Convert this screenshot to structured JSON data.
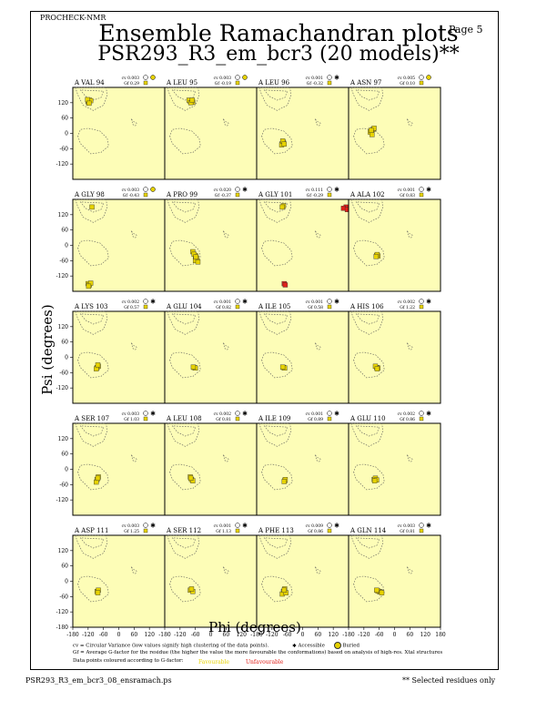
{
  "header": {
    "program": "PROCHECK-NMR",
    "page": "Page 5",
    "title": "Ensemble Ramachandran plots",
    "subtitle": "PSR293_R3_em_bcr3 (20 models)**"
  },
  "axes": {
    "xlabel": "Phi (degrees)",
    "ylabel": "Psi (degrees)",
    "x_ticks": [
      "-180",
      "-120",
      "-60",
      "0",
      "60",
      "120",
      "180"
    ],
    "y_ticks": [
      "120",
      "60",
      "0",
      "-60",
      "-120"
    ],
    "y_ticks_bottom": [
      "120",
      "60",
      "0",
      "-60",
      "-120",
      "-180"
    ]
  },
  "legend": {
    "cv_line": "cv = Circular Variance (low values signify high clustering of the data points).",
    "accessible": "Accessible",
    "buried": "Buried",
    "gf_line": "Gf = Average G-factor for the residue (the higher the value the more favourable the conformations) based on analysis of high-res. Xtal structures",
    "colour_line": "Data points coloured according to G-factor:",
    "favourable": "Favourable",
    "unfavourable": "Unfavourable"
  },
  "footer": {
    "filename": "PSR293_R3_em_bcr3_08_ensramach.ps",
    "note": "** Selected residues only"
  },
  "colors": {
    "panel_bg": "#fdfdb7",
    "favourable": "#e6d200",
    "unfavourable": "#e0201a",
    "region_outline": "#555555"
  },
  "chart_data": {
    "type": "scatter",
    "xlim": [
      -180,
      180
    ],
    "ylim": [
      -180,
      180
    ],
    "grid": false,
    "panels": [
      {
        "label": "A VAL 94",
        "cv": "cv 0.003",
        "gf": "Gf 0.29",
        "acc": "buried",
        "points": [
          [
            -120,
            125
          ],
          [
            -115,
            130
          ],
          [
            -118,
            120
          ],
          [
            -110,
            128
          ],
          [
            -122,
            132
          ],
          [
            -116,
            118
          ]
        ]
      },
      {
        "label": "A LEU 95",
        "cv": "cv 0.003",
        "gf": "Gf -0.19",
        "acc": "buried",
        "points": [
          [
            -80,
            125
          ],
          [
            -75,
            128
          ],
          [
            -70,
            122
          ],
          [
            -85,
            130
          ],
          [
            -78,
            120
          ],
          [
            -72,
            130
          ]
        ]
      },
      {
        "label": "A LEU 96",
        "cv": "cv 0.001",
        "gf": "Gf -0.32",
        "acc": "accessible",
        "points": [
          [
            -80,
            -40
          ],
          [
            -75,
            -35
          ],
          [
            -82,
            -45
          ],
          [
            -78,
            -30
          ],
          [
            -72,
            -42
          ]
        ]
      },
      {
        "label": "A ASN 97",
        "cv": "cv 0.005",
        "gf": "Gf 0.10",
        "acc": "buried",
        "points": [
          [
            -90,
            10
          ],
          [
            -85,
            15
          ],
          [
            -95,
            5
          ],
          [
            -88,
            -5
          ],
          [
            -80,
            20
          ],
          [
            -92,
            12
          ]
        ]
      },
      {
        "label": "A GLY 98",
        "cv": "cv 0.003",
        "gf": "Gf -0.43",
        "acc": "buried",
        "points": [
          [
            -105,
            150
          ],
          [
            -120,
            -150
          ],
          [
            -115,
            -155
          ],
          [
            -110,
            -148
          ],
          [
            -118,
            -160
          ]
        ]
      },
      {
        "label": "A PRO 99",
        "cv": "cv 0.020",
        "gf": "Gf -0.37",
        "acc": "accessible",
        "points": [
          [
            -70,
            -25
          ],
          [
            -60,
            -40
          ],
          [
            -65,
            -35
          ],
          [
            -55,
            -50
          ],
          [
            -60,
            -60
          ],
          [
            -50,
            -65
          ],
          [
            -58,
            -45
          ]
        ]
      },
      {
        "label": "A GLY 101",
        "cv": "cv 0.111",
        "gf": "Gf -0.29",
        "acc": "accessible",
        "points": [
          [
            -75,
            155
          ],
          [
            -80,
            150
          ],
          [
            170,
            150
          ],
          [
            160,
            145
          ],
          [
            175,
            140
          ],
          [
            -72,
            -150
          ],
          [
            -68,
            -155
          ]
        ]
      },
      {
        "label": "A ALA 102",
        "cv": "cv 0.001",
        "gf": "Gf 0.83",
        "acc": "accessible",
        "points": [
          [
            -70,
            -40
          ],
          [
            -65,
            -42
          ],
          [
            -68,
            -36
          ],
          [
            -72,
            -44
          ]
        ]
      },
      {
        "label": "A LYS 103",
        "cv": "cv 0.002",
        "gf": "Gf 0.57",
        "acc": "accessible",
        "points": [
          [
            -85,
            -40
          ],
          [
            -80,
            -35
          ],
          [
            -88,
            -45
          ],
          [
            -82,
            -30
          ]
        ]
      },
      {
        "label": "A GLU 104",
        "cv": "cv 0.001",
        "gf": "Gf 0.82",
        "acc": "accessible",
        "points": [
          [
            -65,
            -40
          ],
          [
            -60,
            -42
          ],
          [
            -68,
            -38
          ]
        ]
      },
      {
        "label": "A ILE 105",
        "cv": "cv 0.001",
        "gf": "Gf 0.58",
        "acc": "accessible",
        "points": [
          [
            -75,
            -40
          ],
          [
            -70,
            -42
          ],
          [
            -78,
            -38
          ]
        ]
      },
      {
        "label": "A HIS 106",
        "cv": "cv 0.002",
        "gf": "Gf 1.22",
        "acc": "accessible",
        "points": [
          [
            -70,
            -40
          ],
          [
            -65,
            -42
          ],
          [
            -75,
            -35
          ],
          [
            -68,
            -45
          ]
        ]
      },
      {
        "label": "A SER 107",
        "cv": "cv 0.003",
        "gf": "Gf 1.03",
        "acc": "accessible",
        "points": [
          [
            -85,
            -40
          ],
          [
            -80,
            -30
          ],
          [
            -88,
            -50
          ],
          [
            -82,
            -35
          ]
        ]
      },
      {
        "label": "A LEU 108",
        "cv": "cv 0.002",
        "gf": "Gf 0.81",
        "acc": "accessible",
        "points": [
          [
            -80,
            -30
          ],
          [
            -75,
            -40
          ],
          [
            -70,
            -45
          ],
          [
            -78,
            -35
          ]
        ]
      },
      {
        "label": "A ILE 109",
        "cv": "cv 0.001",
        "gf": "Gf 0.89",
        "acc": "accessible",
        "points": [
          [
            -70,
            -45
          ],
          [
            -68,
            -40
          ],
          [
            -72,
            -48
          ]
        ]
      },
      {
        "label": "A GLU 110",
        "cv": "cv 0.002",
        "gf": "Gf 0.86",
        "acc": "accessible",
        "points": [
          [
            -80,
            -40
          ],
          [
            -75,
            -35
          ],
          [
            -70,
            -42
          ],
          [
            -78,
            -45
          ]
        ]
      },
      {
        "label": "A ASP 111",
        "cv": "cv 0.003",
        "gf": "Gf 1.25",
        "acc": "accessible",
        "points": [
          [
            -85,
            -40
          ],
          [
            -80,
            -35
          ],
          [
            -82,
            -45
          ]
        ]
      },
      {
        "label": "A SER 112",
        "cv": "cv 0.001",
        "gf": "Gf 1.13",
        "acc": "accessible",
        "points": [
          [
            -80,
            -35
          ],
          [
            -70,
            -40
          ],
          [
            -75,
            -30
          ]
        ]
      },
      {
        "label": "A PHE 113",
        "cv": "cv 0.009",
        "gf": "Gf 0.86",
        "acc": "accessible",
        "points": [
          [
            -75,
            -40
          ],
          [
            -70,
            -30
          ],
          [
            -80,
            -50
          ],
          [
            -65,
            -45
          ],
          [
            -72,
            -35
          ]
        ]
      },
      {
        "label": "A GLN 114",
        "cv": "cv 0.003",
        "gf": "Gf 0.81",
        "acc": "accessible",
        "points": [
          [
            -60,
            -40
          ],
          [
            -55,
            -42
          ],
          [
            -65,
            -38
          ],
          [
            -50,
            -45
          ],
          [
            -70,
            -35
          ]
        ]
      }
    ]
  }
}
